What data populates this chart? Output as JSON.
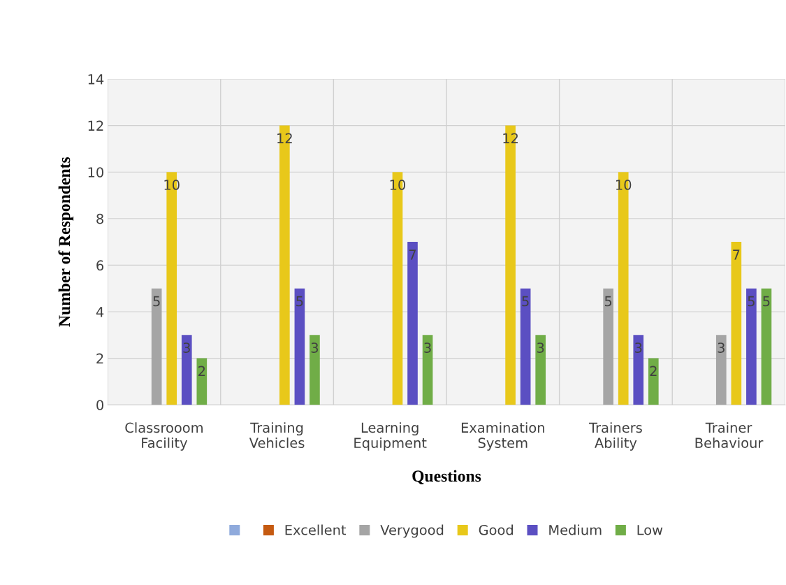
{
  "chart_data": {
    "type": "bar",
    "xlabel": "Questions",
    "ylabel": "Number of Respondents",
    "categories": [
      "Classrooom\nFacility",
      "Training\nVehicles",
      "Learning\nEquipment",
      "Examination\nSystem",
      "Trainers\nAbility",
      "Trainer\nBehaviour"
    ],
    "series": [
      {
        "color": "#8faadc",
        "values": [
          0,
          0,
          0,
          0,
          0,
          0
        ],
        "value_labels": [
          null,
          null,
          null,
          null,
          null,
          null
        ]
      },
      {
        "name": "Excellent",
        "color": "#c55a11",
        "values": [
          0,
          0,
          0,
          0,
          0,
          0
        ],
        "value_labels": [
          null,
          null,
          null,
          null,
          null,
          null
        ]
      },
      {
        "name": "Verygood",
        "color": "#a5a5a5",
        "values": [
          5,
          0,
          0,
          0,
          5,
          3
        ],
        "value_labels": [
          "5",
          null,
          null,
          null,
          "5",
          "3"
        ]
      },
      {
        "name": "Good",
        "color": "#e8c81a",
        "values": [
          10,
          12,
          10,
          12,
          10,
          7
        ],
        "value_labels": [
          "10",
          "12",
          "10",
          "12",
          "10",
          "7"
        ]
      },
      {
        "name": "Medium",
        "color": "#5b4fc2",
        "values": [
          3,
          5,
          7,
          5,
          3,
          5
        ],
        "value_labels": [
          "3",
          "5",
          "7",
          "5",
          "3",
          "5"
        ]
      },
      {
        "name": "Low",
        "color": "#70ad47",
        "values": [
          2,
          3,
          3,
          3,
          2,
          5
        ],
        "value_labels": [
          "2",
          "3",
          "3",
          "3",
          "2",
          "5"
        ]
      }
    ],
    "ylim": [
      0,
      14
    ],
    "yticks": [
      0,
      2,
      4,
      6,
      8,
      10,
      12,
      14
    ],
    "grid": true,
    "legend": "bottom"
  }
}
